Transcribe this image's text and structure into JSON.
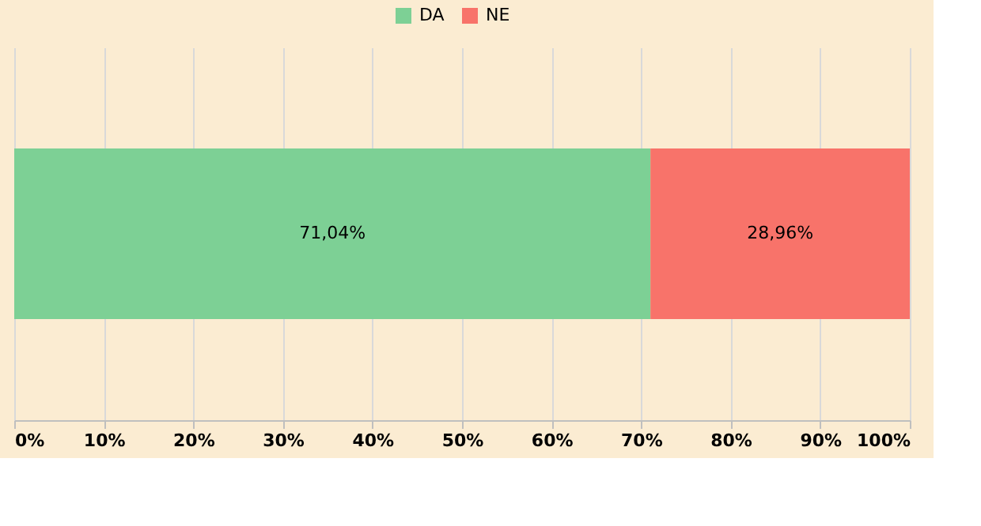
{
  "chart_data": {
    "type": "bar",
    "orientation": "horizontal",
    "stacked": true,
    "categories": [
      null
    ],
    "series": [
      {
        "name": "DA",
        "color": "#7dd095",
        "values": [
          71.04
        ],
        "value_labels": [
          "71,04%"
        ]
      },
      {
        "name": "NE",
        "color": "#f8736a",
        "values": [
          28.96
        ],
        "value_labels": [
          "28,96%"
        ]
      }
    ],
    "xlim": [
      0,
      100
    ],
    "xticks": [
      {
        "value": 0,
        "label": "0%"
      },
      {
        "value": 10,
        "label": "10%"
      },
      {
        "value": 20,
        "label": "20%"
      },
      {
        "value": 30,
        "label": "30%"
      },
      {
        "value": 40,
        "label": "40%"
      },
      {
        "value": 50,
        "label": "50%"
      },
      {
        "value": 60,
        "label": "60%"
      },
      {
        "value": 70,
        "label": "70%"
      },
      {
        "value": 80,
        "label": "80%"
      },
      {
        "value": 90,
        "label": "90%"
      },
      {
        "value": 100,
        "label": "100%"
      }
    ],
    "grid": "x",
    "legend": "top",
    "tick_labels": "x"
  }
}
